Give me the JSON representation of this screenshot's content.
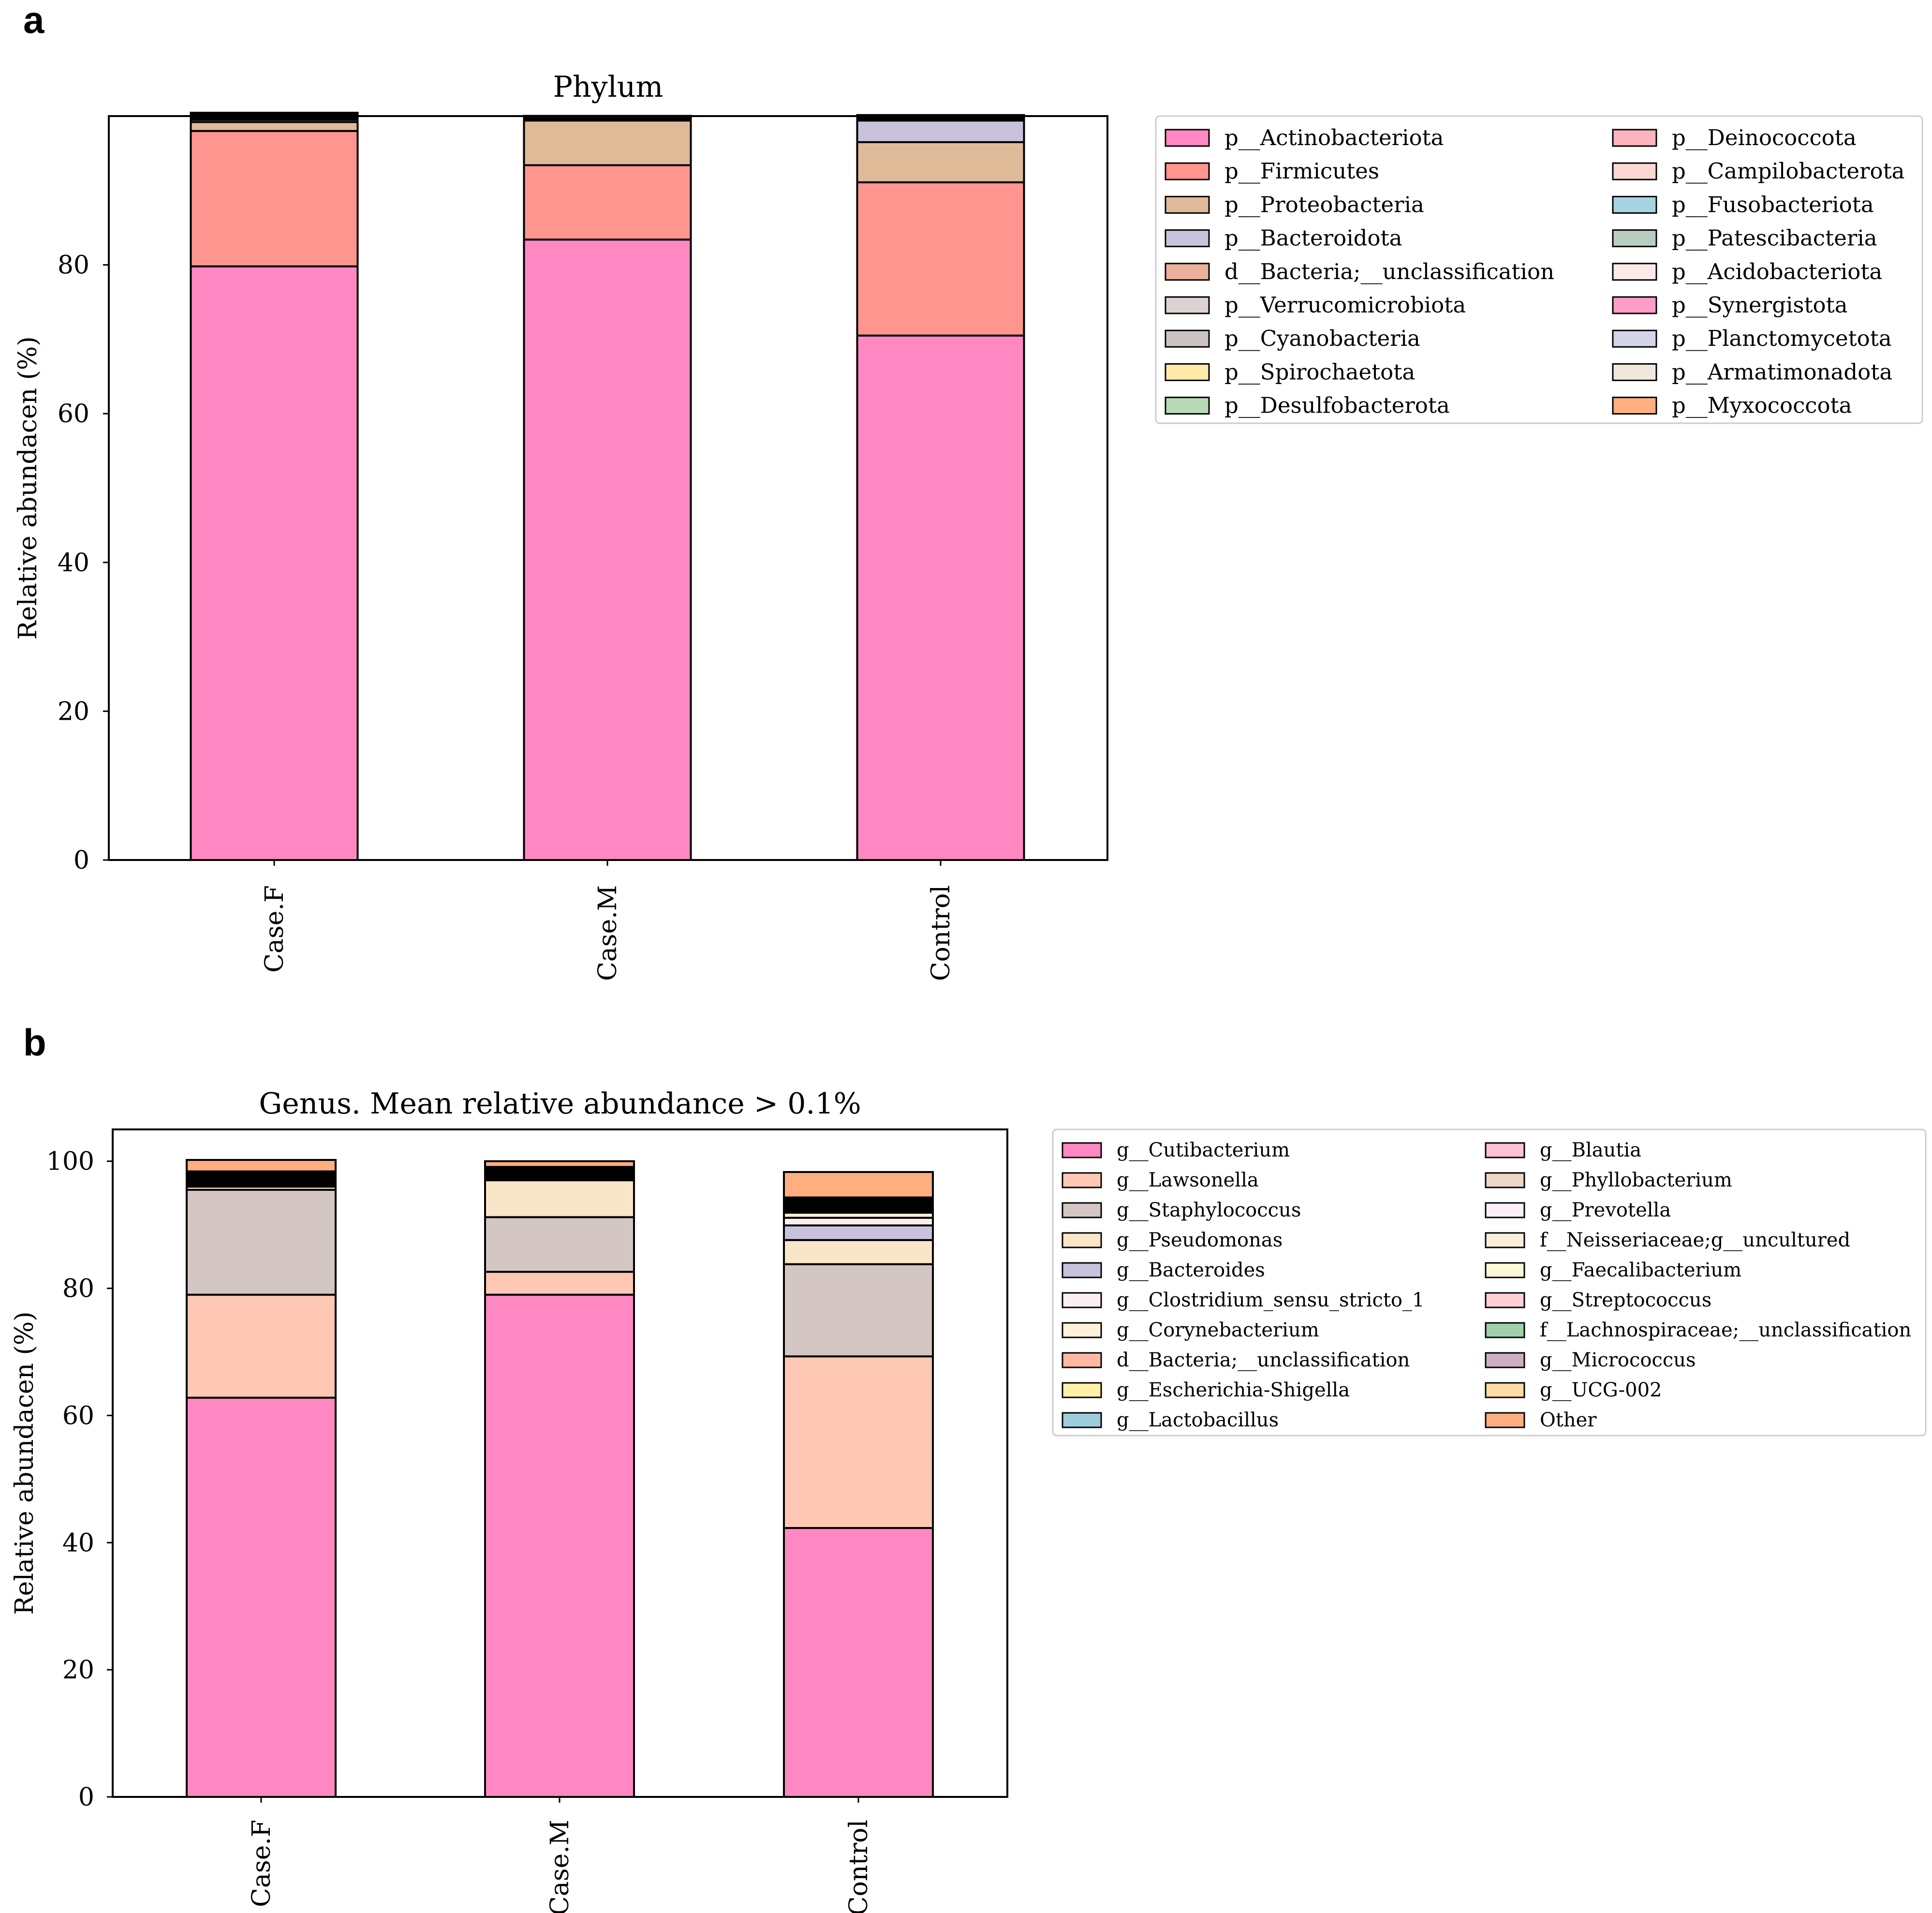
{
  "panels": [
    {
      "letter": "a"
    },
    {
      "letter": "b"
    }
  ],
  "chart_data": [
    {
      "type": "bar",
      "stacked": true,
      "title": "Phylum",
      "xlabel": "",
      "ylabel": "Relative abundacen (%)",
      "ylim": [
        0,
        100
      ],
      "yticks": [
        0,
        20,
        40,
        60,
        80
      ],
      "categories": [
        "Case.F",
        "Case.M",
        "Control"
      ],
      "series": [
        {
          "name": "p__Actinobacteriota",
          "color": "#FF88C2",
          "values": [
            79.8,
            83.4,
            70.5
          ]
        },
        {
          "name": "p__Firmicutes",
          "color": "#FF958F",
          "values": [
            18.2,
            10.0,
            20.6
          ]
        },
        {
          "name": "p__Proteobacteria",
          "color": "#DFBA99",
          "values": [
            1.2,
            6.0,
            5.4
          ]
        },
        {
          "name": "p__Bacteroidota",
          "color": "#C9C2DD",
          "values": [
            0.3,
            0.2,
            2.9
          ]
        },
        {
          "name": "d__Bacteria;__unclassification",
          "color": "#EAB09C",
          "values": [
            0.2,
            0.1,
            0.2
          ]
        },
        {
          "name": "p__Verrucomicrobiota",
          "color": "#DDD2D2",
          "values": [
            0.1,
            0.1,
            0.1
          ]
        },
        {
          "name": "p__Cyanobacteria",
          "color": "#CCC4C2",
          "values": [
            0.1,
            0.1,
            0.1
          ]
        },
        {
          "name": "p__Spirochaetota",
          "color": "#FFEAA8",
          "values": [
            0.05,
            0.02,
            0.02
          ]
        },
        {
          "name": "p__Desulfobacterota",
          "color": "#B6D9B8",
          "values": [
            0.05,
            0.02,
            0.05
          ]
        },
        {
          "name": "p__Deinococcota",
          "color": "#FFB4BD",
          "values": [
            0.05,
            0.01,
            0.03
          ]
        },
        {
          "name": "p__Campilobacterota",
          "color": "#FDD8D3",
          "values": [
            0.05,
            0.01,
            0.03
          ]
        },
        {
          "name": "p__Fusobacteriota",
          "color": "#A6D3E0",
          "values": [
            0.05,
            0.01,
            0.03
          ]
        },
        {
          "name": "p__Patescibacteria",
          "color": "#B9CEC0",
          "values": [
            0.05,
            0.01,
            0.03
          ]
        },
        {
          "name": "p__Acidobacteriota",
          "color": "#FBEAEA",
          "values": [
            0.05,
            0.01,
            0.03
          ]
        },
        {
          "name": "p__Synergistota",
          "color": "#FF9DC9",
          "values": [
            0.05,
            0.01,
            0.03
          ]
        },
        {
          "name": "p__Planctomycetota",
          "color": "#D5D5E9",
          "values": [
            0.05,
            0.01,
            0.03
          ]
        },
        {
          "name": "p__Armatimonadota",
          "color": "#EFE8DC",
          "values": [
            0.05,
            0.01,
            0.03
          ]
        },
        {
          "name": "p__Myxococcota",
          "color": "#FFAE80",
          "values": [
            0.05,
            0.01,
            0.03
          ]
        }
      ],
      "legend": {
        "position": "outside-right",
        "columns": 2
      }
    },
    {
      "type": "bar",
      "stacked": true,
      "title": "Genus. Mean relative abundance > 0.1%",
      "xlabel": "",
      "ylabel": "Relative abundacen (%)",
      "ylim": [
        0,
        105
      ],
      "yticks": [
        0,
        20,
        40,
        60,
        80,
        100
      ],
      "categories": [
        "Case.F",
        "Case.M",
        "Control"
      ],
      "series": [
        {
          "name": "g__Cutibacterium",
          "color": "#FF88C2",
          "values": [
            62.8,
            79.0,
            42.3
          ]
        },
        {
          "name": "g__Lawsonella",
          "color": "#FFC8B5",
          "values": [
            16.2,
            3.6,
            27.0
          ]
        },
        {
          "name": "g__Staphylococcus",
          "color": "#D4C6C2",
          "values": [
            16.5,
            8.6,
            14.5
          ]
        },
        {
          "name": "g__Pseudomonas",
          "color": "#F9E5C8",
          "values": [
            0.5,
            5.8,
            3.8
          ]
        },
        {
          "name": "g__Bacteroides",
          "color": "#C9C2DD",
          "values": [
            0.2,
            0.2,
            2.3
          ]
        },
        {
          "name": "g__Clostridium_sensu_stricto_1",
          "color": "#FCEFF2",
          "values": [
            0.3,
            0.2,
            1.2
          ]
        },
        {
          "name": "g__Corynebacterium",
          "color": "#FFF2D8",
          "values": [
            0.3,
            0.3,
            0.8
          ]
        },
        {
          "name": "d__Bacteria;__unclassification",
          "color": "#FFB9A2",
          "values": [
            0.2,
            0.1,
            0.3
          ]
        },
        {
          "name": "g__Escherichia-Shigella",
          "color": "#FFF0A8",
          "values": [
            0.2,
            0.2,
            0.3
          ]
        },
        {
          "name": "g__Lactobacillus",
          "color": "#9DCDDB",
          "values": [
            0.2,
            0.1,
            0.2
          ]
        },
        {
          "name": "g__Blautia",
          "color": "#FDC1D5",
          "values": [
            0.2,
            0.1,
            0.2
          ]
        },
        {
          "name": "g__Phyllobacterium",
          "color": "#EDD6C6",
          "values": [
            0.1,
            0.2,
            0.2
          ]
        },
        {
          "name": "g__Prevotella",
          "color": "#FDEFF8",
          "values": [
            0.1,
            0.1,
            0.2
          ]
        },
        {
          "name": "f__Neisseriaceae;g__uncultured",
          "color": "#FBEEDC",
          "values": [
            0.1,
            0.1,
            0.2
          ]
        },
        {
          "name": "g__Faecalibacterium",
          "color": "#FBF8D8",
          "values": [
            0.1,
            0.1,
            0.2
          ]
        },
        {
          "name": "g__Streptococcus",
          "color": "#FCCFD4",
          "values": [
            0.1,
            0.1,
            0.2
          ]
        },
        {
          "name": "f__Lachnospiraceae;__unclassification",
          "color": "#9ED0AA",
          "values": [
            0.1,
            0.1,
            0.2
          ]
        },
        {
          "name": "g__Micrococcus",
          "color": "#CDB0C0",
          "values": [
            0.1,
            0.1,
            0.1
          ]
        },
        {
          "name": "g__UCG-002",
          "color": "#FFDCA3",
          "values": [
            0.1,
            0.1,
            0.1
          ]
        },
        {
          "name": "Other",
          "color": "#FFAE80",
          "values": [
            1.8,
            0.9,
            4.0
          ]
        }
      ],
      "legend": {
        "position": "outside-right",
        "columns": 2
      }
    }
  ]
}
